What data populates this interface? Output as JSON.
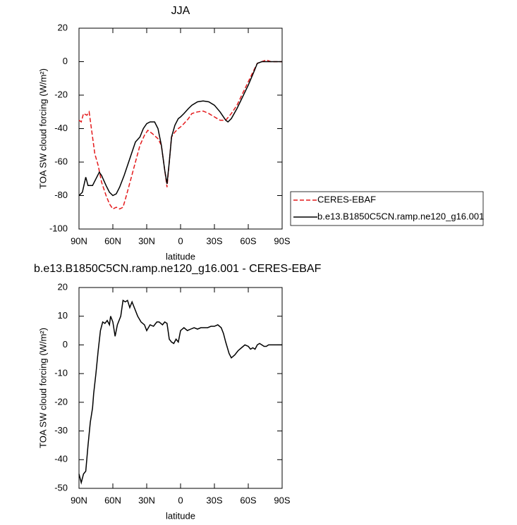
{
  "chart_data": [
    {
      "type": "line",
      "title": "JJA",
      "x_label": "latitude",
      "y_label": "TOA SW cloud forcing (W/m²)",
      "xlim": [
        90,
        -90
      ],
      "xticks": [
        {
          "value": 90,
          "label": "90N"
        },
        {
          "value": 60,
          "label": "60N"
        },
        {
          "value": 30,
          "label": "30N"
        },
        0,
        {
          "value": -30,
          "label": "30S"
        },
        {
          "value": -60,
          "label": "60S"
        },
        {
          "value": -90,
          "label": "90S"
        }
      ],
      "ylim": [
        -100,
        20
      ],
      "yticks": [
        20,
        0,
        -20,
        -40,
        -60,
        -80,
        -100
      ],
      "legend": "right",
      "series": [
        {
          "name": "CERES-EBAF",
          "color": "#e41a1c",
          "linestyle": "dashed",
          "x": [
            90,
            88,
            86,
            83,
            81,
            78,
            76,
            73,
            70,
            66,
            63,
            60,
            57,
            54,
            51,
            48,
            44,
            40,
            36,
            32,
            29,
            25,
            20,
            17,
            14,
            12,
            10,
            8,
            5,
            2,
            0,
            -3,
            -7,
            -10,
            -15,
            -20,
            -25,
            -30,
            -35,
            -40,
            -45,
            -50,
            -55,
            -60,
            -65,
            -68,
            -72,
            -76,
            -80,
            -90
          ],
          "values": [
            -35,
            -36,
            -31,
            -32,
            -30,
            -45,
            -55,
            -62,
            -72,
            -80,
            -85,
            -88,
            -87,
            -88,
            -87,
            -80,
            -70,
            -60,
            -50,
            -44,
            -41,
            -43,
            -46,
            -50,
            -65,
            -75,
            -60,
            -45,
            -42,
            -40,
            -39,
            -37,
            -34,
            -31,
            -30,
            -29.5,
            -31,
            -33,
            -35,
            -35,
            -31,
            -26,
            -19,
            -12,
            -5,
            -1,
            0,
            1,
            0,
            0
          ]
        },
        {
          "name": "b.e13.B1850C5CN.ramp.ne120_g16.001",
          "color": "#000000",
          "linestyle": "solid",
          "x": [
            90,
            87,
            84,
            82,
            78,
            75,
            72,
            70,
            66,
            63,
            60,
            57,
            54,
            50,
            45,
            40,
            36,
            33,
            30,
            27,
            23,
            20,
            17,
            14,
            12,
            10,
            8,
            5,
            2,
            0,
            -3,
            -7,
            -10,
            -15,
            -20,
            -25,
            -30,
            -35,
            -40,
            -42,
            -45,
            -50,
            -55,
            -60,
            -65,
            -68,
            -72,
            -80,
            -90
          ],
          "values": [
            -80,
            -78,
            -69,
            -74,
            -74,
            -70,
            -66,
            -68,
            -74,
            -78,
            -80,
            -79,
            -75,
            -68,
            -58,
            -48,
            -45,
            -40,
            -37,
            -36,
            -36,
            -40,
            -50,
            -65,
            -73,
            -60,
            -45,
            -38,
            -34,
            -33,
            -31,
            -28,
            -26,
            -24,
            -23.5,
            -24,
            -26,
            -30,
            -35,
            -36,
            -34,
            -28,
            -21,
            -14,
            -6,
            -1,
            0,
            0,
            0
          ]
        }
      ]
    },
    {
      "type": "line",
      "title": "b.e13.B1850C5CN.ramp.ne120_g16.001 - CERES-EBAF",
      "x_label": "latitude",
      "y_label": "TOA SW cloud forcing (W/m²)",
      "xlim": [
        90,
        -90
      ],
      "xticks": [
        {
          "value": 90,
          "label": "90N"
        },
        {
          "value": 60,
          "label": "60N"
        },
        {
          "value": 30,
          "label": "30N"
        },
        0,
        {
          "value": -30,
          "label": "30S"
        },
        {
          "value": -60,
          "label": "60S"
        },
        {
          "value": -90,
          "label": "90S"
        }
      ],
      "ylim": [
        -50,
        20
      ],
      "yticks": [
        20,
        10,
        0,
        -10,
        -20,
        -30,
        -40,
        -50
      ],
      "series": [
        {
          "color": "#000000",
          "linestyle": "solid",
          "x": [
            90,
            88,
            86,
            84,
            82,
            80,
            78,
            77,
            75,
            73,
            71,
            69,
            67,
            65,
            63,
            62,
            60,
            58,
            56,
            53,
            51,
            49,
            47,
            45,
            43,
            41,
            38,
            35,
            32,
            30,
            27,
            24,
            21,
            19,
            16,
            14,
            12,
            10,
            8,
            6,
            4,
            2,
            0,
            -3,
            -6,
            -9,
            -12,
            -15,
            -18,
            -21,
            -24,
            -27,
            -30,
            -33,
            -36,
            -38,
            -40,
            -43,
            -45,
            -48,
            -51,
            -54,
            -57,
            -60,
            -62,
            -64,
            -66,
            -68,
            -70,
            -72,
            -74,
            -76,
            -78,
            -80,
            -85,
            -90
          ],
          "values": [
            -45,
            -48,
            -45,
            -44,
            -35,
            -27,
            -22,
            -17,
            -10,
            -2,
            5,
            8,
            7.5,
            8.5,
            7,
            10,
            8,
            3,
            7,
            10,
            15.5,
            15,
            15.5,
            13,
            15,
            13,
            10,
            8,
            7,
            5,
            7,
            6.5,
            8,
            8,
            7,
            8,
            7.5,
            2,
            1,
            0.5,
            2,
            1,
            5,
            6,
            5,
            5.5,
            6,
            5.5,
            6,
            6,
            6,
            6.5,
            6.5,
            7,
            6,
            4,
            1,
            -3,
            -4.5,
            -3.5,
            -2,
            -1,
            0,
            -0.5,
            -1.5,
            -1,
            -1.5,
            0,
            0.5,
            0,
            -0.5,
            -0.5,
            0,
            0,
            0,
            0
          ]
        }
      ]
    }
  ]
}
